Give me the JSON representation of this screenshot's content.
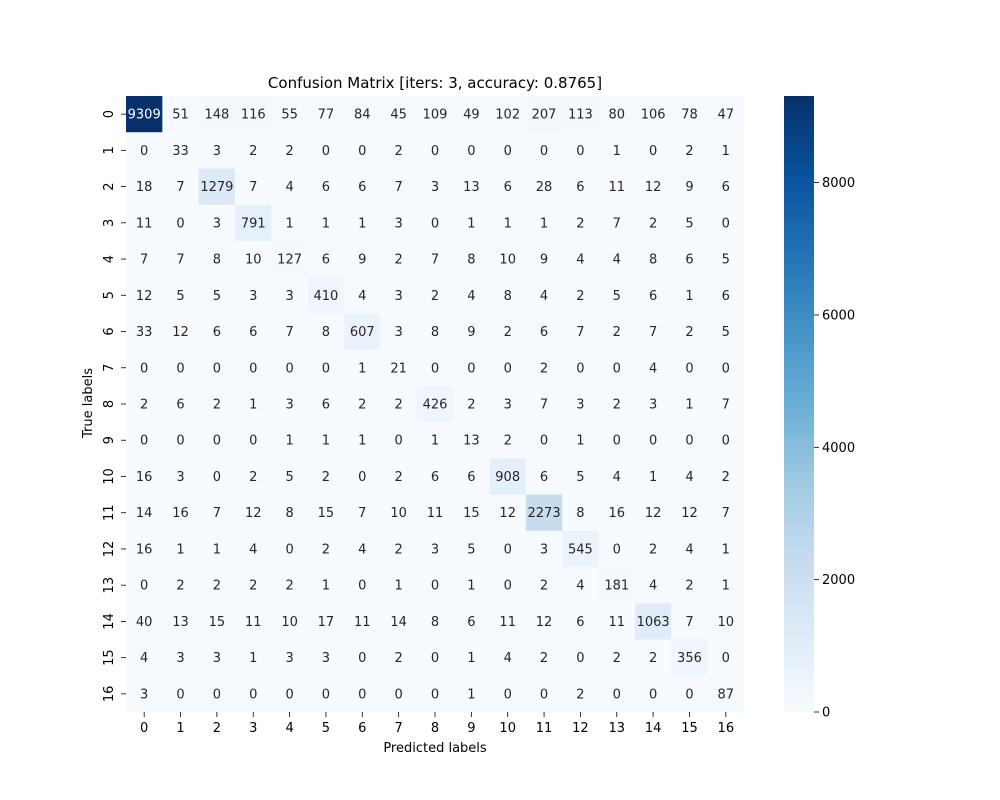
{
  "chart_data": {
    "type": "heatmap",
    "title": "Confusion Matrix [iters: 3, accuracy: 0.8765]",
    "xlabel": "Predicted labels",
    "ylabel": "True labels",
    "x_ticks": [
      "0",
      "1",
      "2",
      "3",
      "4",
      "5",
      "6",
      "7",
      "8",
      "9",
      "10",
      "11",
      "12",
      "13",
      "14",
      "15",
      "16"
    ],
    "y_ticks": [
      "0",
      "1",
      "2",
      "3",
      "4",
      "5",
      "6",
      "7",
      "8",
      "9",
      "10",
      "11",
      "12",
      "13",
      "14",
      "15",
      "16"
    ],
    "matrix": [
      [
        9309,
        51,
        148,
        116,
        55,
        77,
        84,
        45,
        109,
        49,
        102,
        207,
        113,
        80,
        106,
        78,
        47
      ],
      [
        0,
        33,
        3,
        2,
        2,
        0,
        0,
        2,
        0,
        0,
        0,
        0,
        0,
        1,
        0,
        2,
        1
      ],
      [
        18,
        7,
        1279,
        7,
        4,
        6,
        6,
        7,
        3,
        13,
        6,
        28,
        6,
        11,
        12,
        9,
        6
      ],
      [
        11,
        0,
        3,
        791,
        1,
        1,
        1,
        3,
        0,
        1,
        1,
        1,
        2,
        7,
        2,
        5,
        0
      ],
      [
        7,
        7,
        8,
        10,
        127,
        6,
        9,
        2,
        7,
        8,
        10,
        9,
        4,
        4,
        8,
        6,
        5
      ],
      [
        12,
        5,
        5,
        3,
        3,
        410,
        4,
        3,
        2,
        4,
        8,
        4,
        2,
        5,
        6,
        1,
        6
      ],
      [
        33,
        12,
        6,
        6,
        7,
        8,
        607,
        3,
        8,
        9,
        2,
        6,
        7,
        2,
        7,
        2,
        5
      ],
      [
        0,
        0,
        0,
        0,
        0,
        0,
        1,
        21,
        0,
        0,
        0,
        2,
        0,
        0,
        4,
        0,
        0
      ],
      [
        2,
        6,
        2,
        1,
        3,
        6,
        2,
        2,
        426,
        2,
        3,
        7,
        3,
        2,
        3,
        1,
        7
      ],
      [
        0,
        0,
        0,
        0,
        1,
        1,
        1,
        0,
        1,
        13,
        2,
        0,
        1,
        0,
        0,
        0,
        0
      ],
      [
        16,
        3,
        0,
        2,
        5,
        2,
        0,
        2,
        6,
        6,
        908,
        6,
        5,
        4,
        1,
        4,
        2
      ],
      [
        14,
        16,
        7,
        12,
        8,
        15,
        7,
        10,
        11,
        15,
        12,
        2273,
        8,
        16,
        12,
        12,
        7
      ],
      [
        16,
        1,
        1,
        4,
        0,
        2,
        4,
        2,
        3,
        5,
        0,
        3,
        545,
        0,
        2,
        4,
        1
      ],
      [
        0,
        2,
        2,
        2,
        2,
        1,
        0,
        1,
        0,
        1,
        0,
        2,
        4,
        181,
        4,
        2,
        1
      ],
      [
        40,
        13,
        15,
        11,
        10,
        17,
        11,
        14,
        8,
        6,
        11,
        12,
        6,
        11,
        1063,
        7,
        10
      ],
      [
        4,
        3,
        3,
        1,
        3,
        3,
        0,
        2,
        0,
        1,
        4,
        2,
        0,
        2,
        2,
        356,
        0
      ],
      [
        3,
        0,
        0,
        0,
        0,
        0,
        0,
        0,
        0,
        1,
        0,
        0,
        2,
        0,
        0,
        0,
        87
      ]
    ],
    "colormap": "Blues",
    "vmin": 0,
    "vmax": 9309,
    "colorbar_ticks": [
      0,
      2000,
      4000,
      6000,
      8000
    ],
    "colorbar_tick_labels": [
      "0",
      "2000",
      "4000",
      "6000",
      "8000"
    ],
    "grid": false,
    "legend": "colorbar-right"
  }
}
